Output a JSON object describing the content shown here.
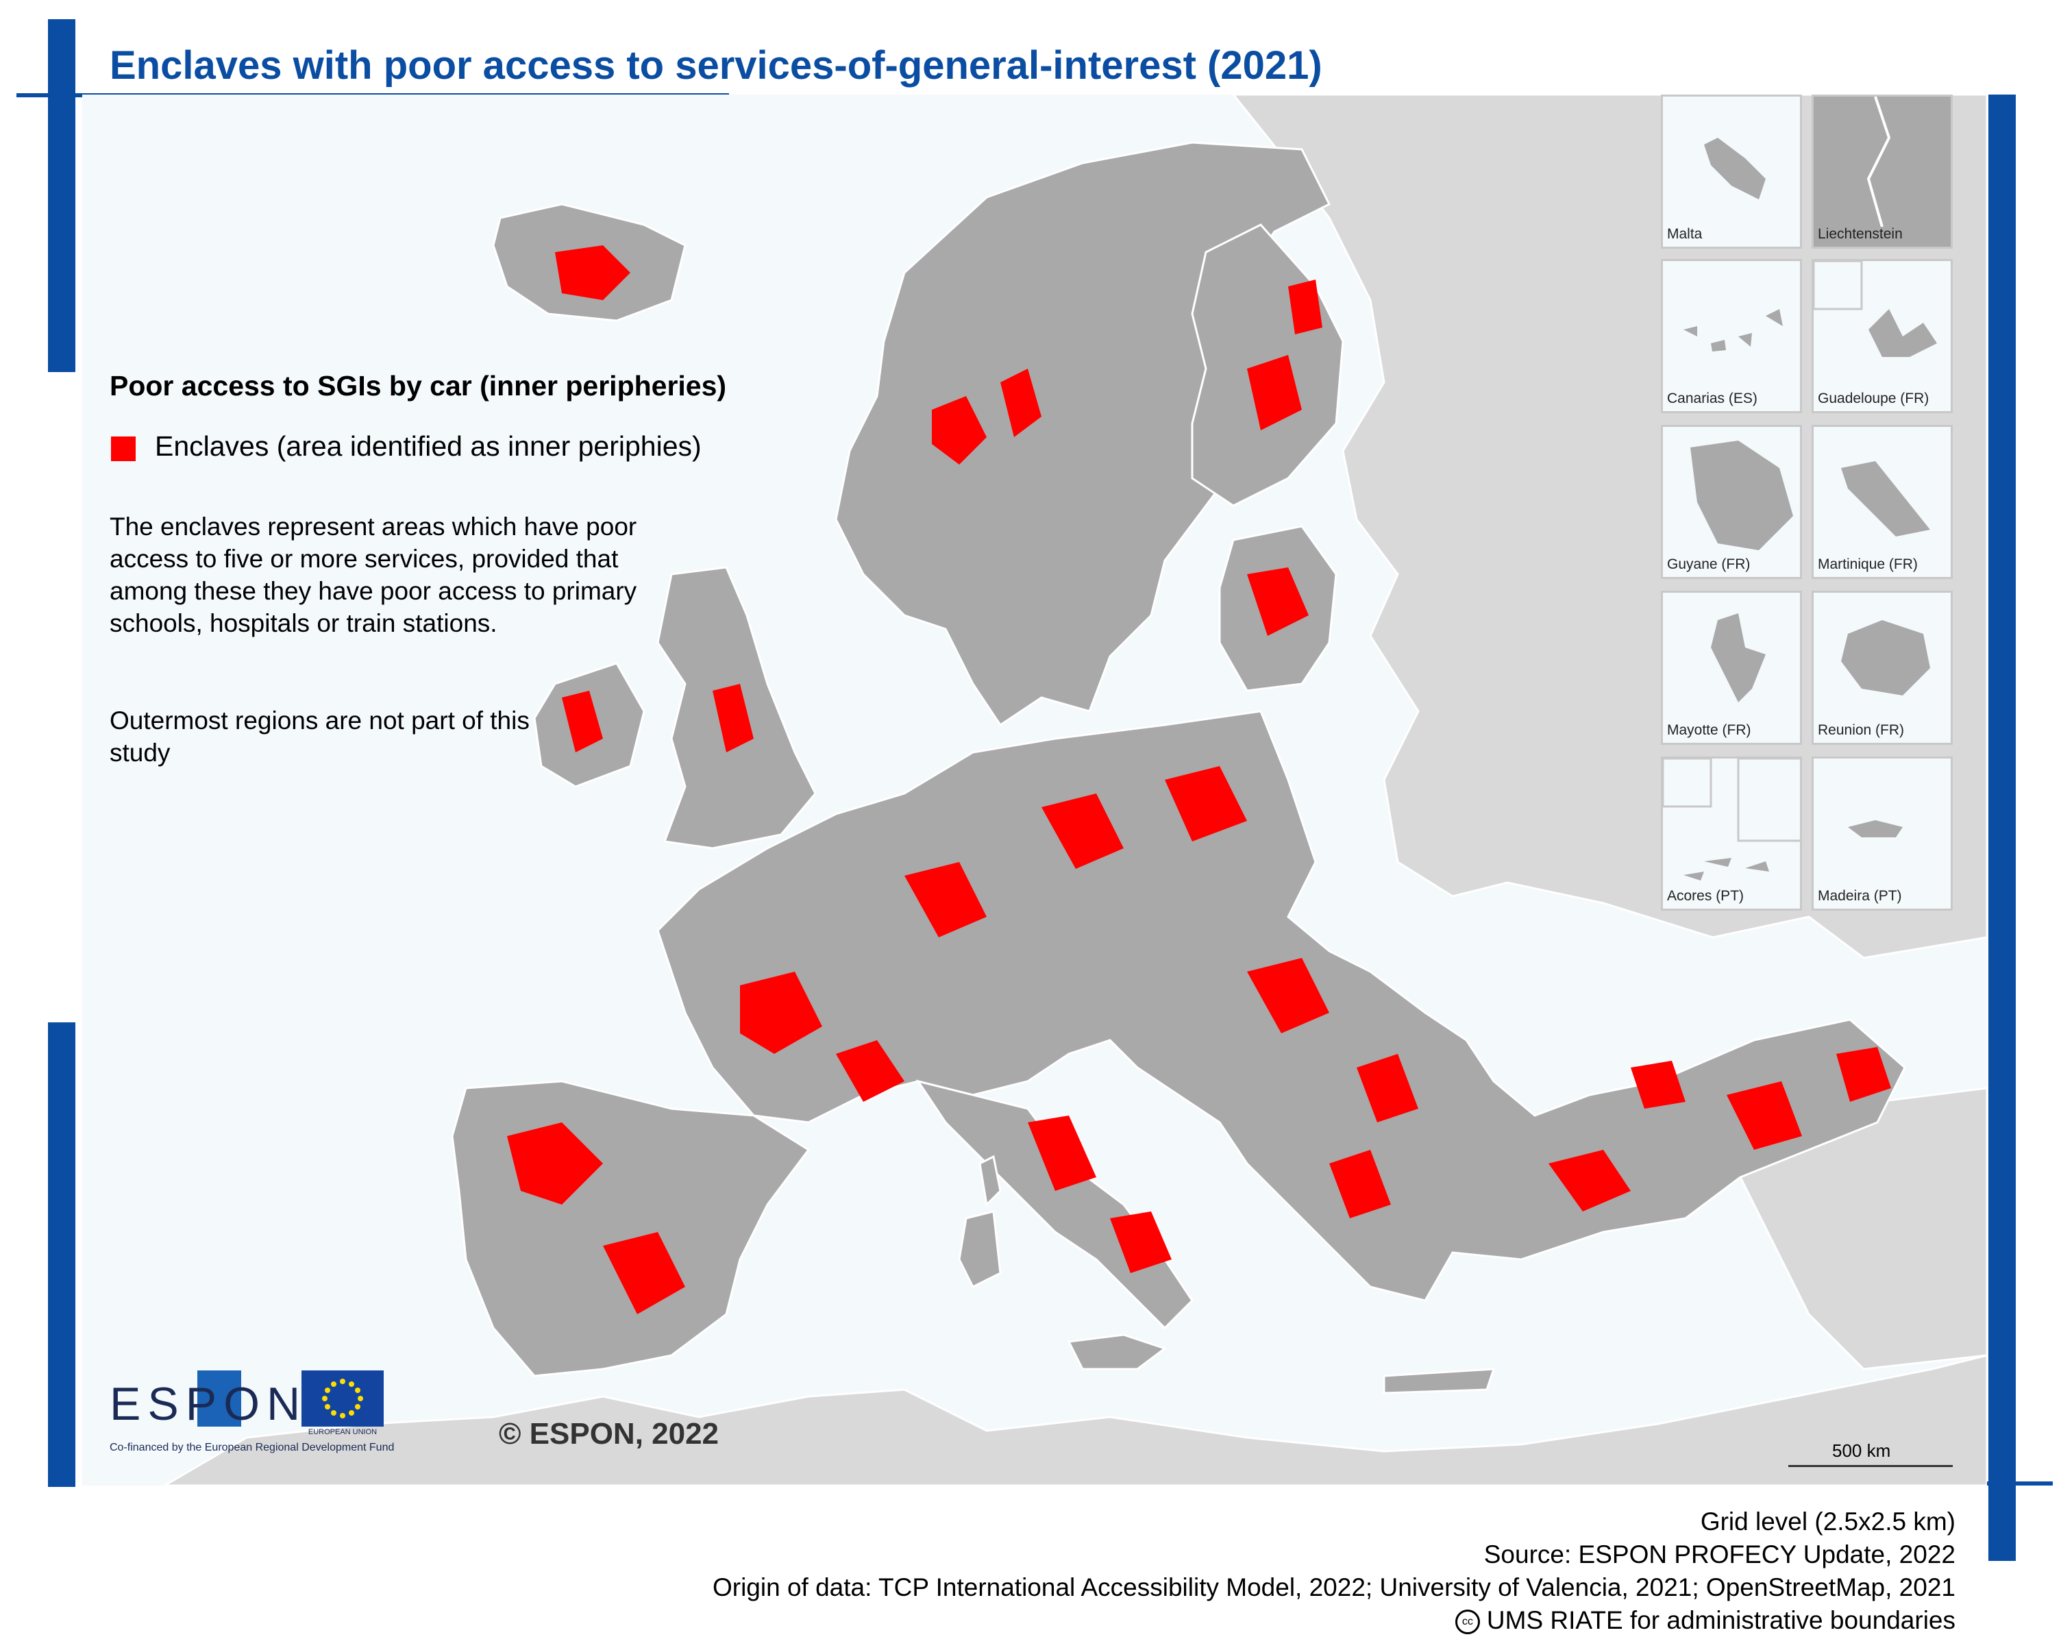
{
  "title": "Enclaves with poor access to services-of-general-interest (2021)",
  "legend": {
    "title": "Poor access to SGIs by car (inner peripheries)",
    "item_label": "Enclaves (area identified as inner periphies)",
    "item_color": "#ff0000"
  },
  "description": "The enclaves represent areas which have poor access to five or more services, provided that among these they have poor access to primary schools, hospitals or train stations.",
  "note": "Outermost regions are not part of this study",
  "insets": [
    "Malta",
    "Liechtenstein",
    "Canarias (ES)",
    "Guadeloupe (FR)",
    "Guyane (FR)",
    "Martinique (FR)",
    "Mayotte (FR)",
    "Reunion (FR)",
    "Acores (PT)",
    "Madeira (PT)"
  ],
  "copyright": "© ESPON, 2022",
  "logo": {
    "espon_text": "ESPON",
    "eu_text": "EUROPEAN UNION",
    "cofinanced": "Co-financed by the European Regional Development Fund"
  },
  "scale_label": "500 km",
  "footer": {
    "grid": "Grid level (2.5x2.5 km)",
    "source": "Source: ESPON PROFECY Update, 2022",
    "origin": "Origin of data: TCP International Accessibility Model, 2022; University of Valencia, 2021; OpenStreetMap, 2021",
    "boundaries": "UMS RIATE for administrative boundaries"
  },
  "colors": {
    "brand_blue": "#0a4da2",
    "study_area": "#a9a9a9",
    "outside_land": "#d9d9d9",
    "sea": "#f4f9fc",
    "enclave": "#ff0000"
  }
}
